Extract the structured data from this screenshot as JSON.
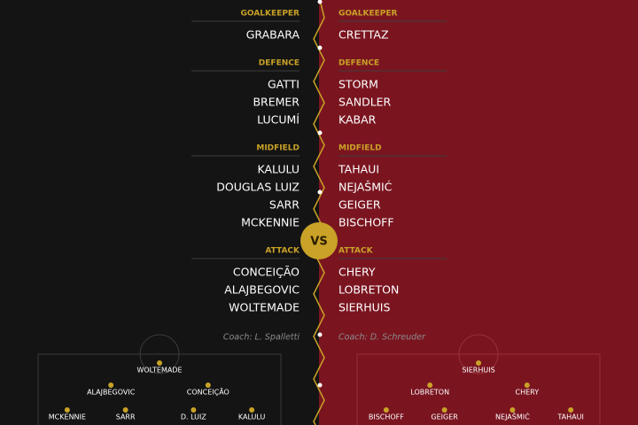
{
  "home": {
    "sections": [
      {
        "label": "GOALKEEPER",
        "players": [
          "GRABARA"
        ]
      },
      {
        "label": "DEFENCE",
        "players": [
          "GATTI",
          "BREMER",
          "LUCUMÍ"
        ]
      },
      {
        "label": "MIDFIELD",
        "players": [
          "KALULU",
          "DOUGLAS LUIZ",
          "SARR",
          "MCKENNIE"
        ]
      },
      {
        "label": "ATTACK",
        "players": [
          "CONCEIÇÃO",
          "ALAJBEGOVIC",
          "WOLTEMADE"
        ]
      }
    ],
    "coach": "Coach: L. Spalletti",
    "formation": [
      [
        "WOLTEMADE"
      ],
      [
        "ALAJBEGOVIC",
        "CONCEIÇÃO"
      ],
      [
        "MCKENNIE",
        "SARR",
        "D. LUIZ",
        "KALULU"
      ]
    ]
  },
  "away": {
    "sections": [
      {
        "label": "GOALKEEPER",
        "players": [
          "CRETTAZ"
        ]
      },
      {
        "label": "DEFENCE",
        "players": [
          "STORM",
          "SANDLER",
          "KABAR"
        ]
      },
      {
        "label": "MIDFIELD",
        "players": [
          "TAHAUI",
          "NEJAŠMIĆ",
          "GEIGER",
          "BISCHOFF"
        ]
      },
      {
        "label": "ATTACK",
        "players": [
          "CHERY",
          "LOBRETON",
          "SIERHUIS"
        ]
      }
    ],
    "coach": "Coach: D. Schreuder",
    "formation": [
      [
        "SIERHUIS"
      ],
      [
        "LOBRETON",
        "CHERY"
      ],
      [
        "BISCHOFF",
        "GEIGER",
        "NEJAŠMIĆ",
        "TAHAUI"
      ]
    ]
  },
  "vs": "VS"
}
